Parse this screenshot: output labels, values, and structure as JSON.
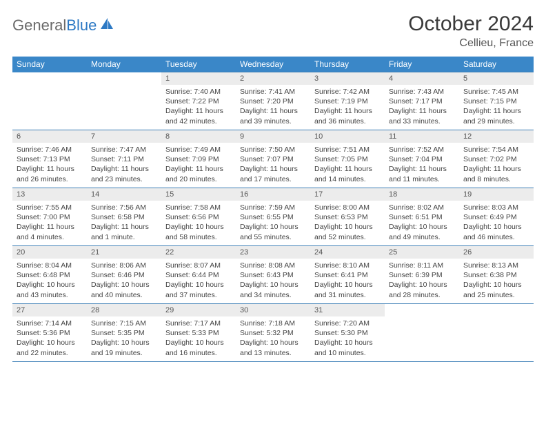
{
  "brand": {
    "part1": "General",
    "part2": "Blue"
  },
  "title": "October 2024",
  "location": "Cellieu, France",
  "colors": {
    "header_bg": "#3a87c8",
    "header_text": "#ffffff",
    "border": "#3a7db5",
    "daynum_bg": "#ececec",
    "body_text": "#444444",
    "logo_gray": "#6a6a6a",
    "logo_blue": "#2d79c4"
  },
  "weekdays": [
    "Sunday",
    "Monday",
    "Tuesday",
    "Wednesday",
    "Thursday",
    "Friday",
    "Saturday"
  ],
  "weeks": [
    [
      null,
      null,
      {
        "n": "1",
        "sr": "7:40 AM",
        "ss": "7:22 PM",
        "dl": "11 hours and 42 minutes."
      },
      {
        "n": "2",
        "sr": "7:41 AM",
        "ss": "7:20 PM",
        "dl": "11 hours and 39 minutes."
      },
      {
        "n": "3",
        "sr": "7:42 AM",
        "ss": "7:19 PM",
        "dl": "11 hours and 36 minutes."
      },
      {
        "n": "4",
        "sr": "7:43 AM",
        "ss": "7:17 PM",
        "dl": "11 hours and 33 minutes."
      },
      {
        "n": "5",
        "sr": "7:45 AM",
        "ss": "7:15 PM",
        "dl": "11 hours and 29 minutes."
      }
    ],
    [
      {
        "n": "6",
        "sr": "7:46 AM",
        "ss": "7:13 PM",
        "dl": "11 hours and 26 minutes."
      },
      {
        "n": "7",
        "sr": "7:47 AM",
        "ss": "7:11 PM",
        "dl": "11 hours and 23 minutes."
      },
      {
        "n": "8",
        "sr": "7:49 AM",
        "ss": "7:09 PM",
        "dl": "11 hours and 20 minutes."
      },
      {
        "n": "9",
        "sr": "7:50 AM",
        "ss": "7:07 PM",
        "dl": "11 hours and 17 minutes."
      },
      {
        "n": "10",
        "sr": "7:51 AM",
        "ss": "7:05 PM",
        "dl": "11 hours and 14 minutes."
      },
      {
        "n": "11",
        "sr": "7:52 AM",
        "ss": "7:04 PM",
        "dl": "11 hours and 11 minutes."
      },
      {
        "n": "12",
        "sr": "7:54 AM",
        "ss": "7:02 PM",
        "dl": "11 hours and 8 minutes."
      }
    ],
    [
      {
        "n": "13",
        "sr": "7:55 AM",
        "ss": "7:00 PM",
        "dl": "11 hours and 4 minutes."
      },
      {
        "n": "14",
        "sr": "7:56 AM",
        "ss": "6:58 PM",
        "dl": "11 hours and 1 minute."
      },
      {
        "n": "15",
        "sr": "7:58 AM",
        "ss": "6:56 PM",
        "dl": "10 hours and 58 minutes."
      },
      {
        "n": "16",
        "sr": "7:59 AM",
        "ss": "6:55 PM",
        "dl": "10 hours and 55 minutes."
      },
      {
        "n": "17",
        "sr": "8:00 AM",
        "ss": "6:53 PM",
        "dl": "10 hours and 52 minutes."
      },
      {
        "n": "18",
        "sr": "8:02 AM",
        "ss": "6:51 PM",
        "dl": "10 hours and 49 minutes."
      },
      {
        "n": "19",
        "sr": "8:03 AM",
        "ss": "6:49 PM",
        "dl": "10 hours and 46 minutes."
      }
    ],
    [
      {
        "n": "20",
        "sr": "8:04 AM",
        "ss": "6:48 PM",
        "dl": "10 hours and 43 minutes."
      },
      {
        "n": "21",
        "sr": "8:06 AM",
        "ss": "6:46 PM",
        "dl": "10 hours and 40 minutes."
      },
      {
        "n": "22",
        "sr": "8:07 AM",
        "ss": "6:44 PM",
        "dl": "10 hours and 37 minutes."
      },
      {
        "n": "23",
        "sr": "8:08 AM",
        "ss": "6:43 PM",
        "dl": "10 hours and 34 minutes."
      },
      {
        "n": "24",
        "sr": "8:10 AM",
        "ss": "6:41 PM",
        "dl": "10 hours and 31 minutes."
      },
      {
        "n": "25",
        "sr": "8:11 AM",
        "ss": "6:39 PM",
        "dl": "10 hours and 28 minutes."
      },
      {
        "n": "26",
        "sr": "8:13 AM",
        "ss": "6:38 PM",
        "dl": "10 hours and 25 minutes."
      }
    ],
    [
      {
        "n": "27",
        "sr": "7:14 AM",
        "ss": "5:36 PM",
        "dl": "10 hours and 22 minutes."
      },
      {
        "n": "28",
        "sr": "7:15 AM",
        "ss": "5:35 PM",
        "dl": "10 hours and 19 minutes."
      },
      {
        "n": "29",
        "sr": "7:17 AM",
        "ss": "5:33 PM",
        "dl": "10 hours and 16 minutes."
      },
      {
        "n": "30",
        "sr": "7:18 AM",
        "ss": "5:32 PM",
        "dl": "10 hours and 13 minutes."
      },
      {
        "n": "31",
        "sr": "7:20 AM",
        "ss": "5:30 PM",
        "dl": "10 hours and 10 minutes."
      },
      null,
      null
    ]
  ],
  "labels": {
    "sunrise": "Sunrise: ",
    "sunset": "Sunset: ",
    "daylight": "Daylight: "
  }
}
